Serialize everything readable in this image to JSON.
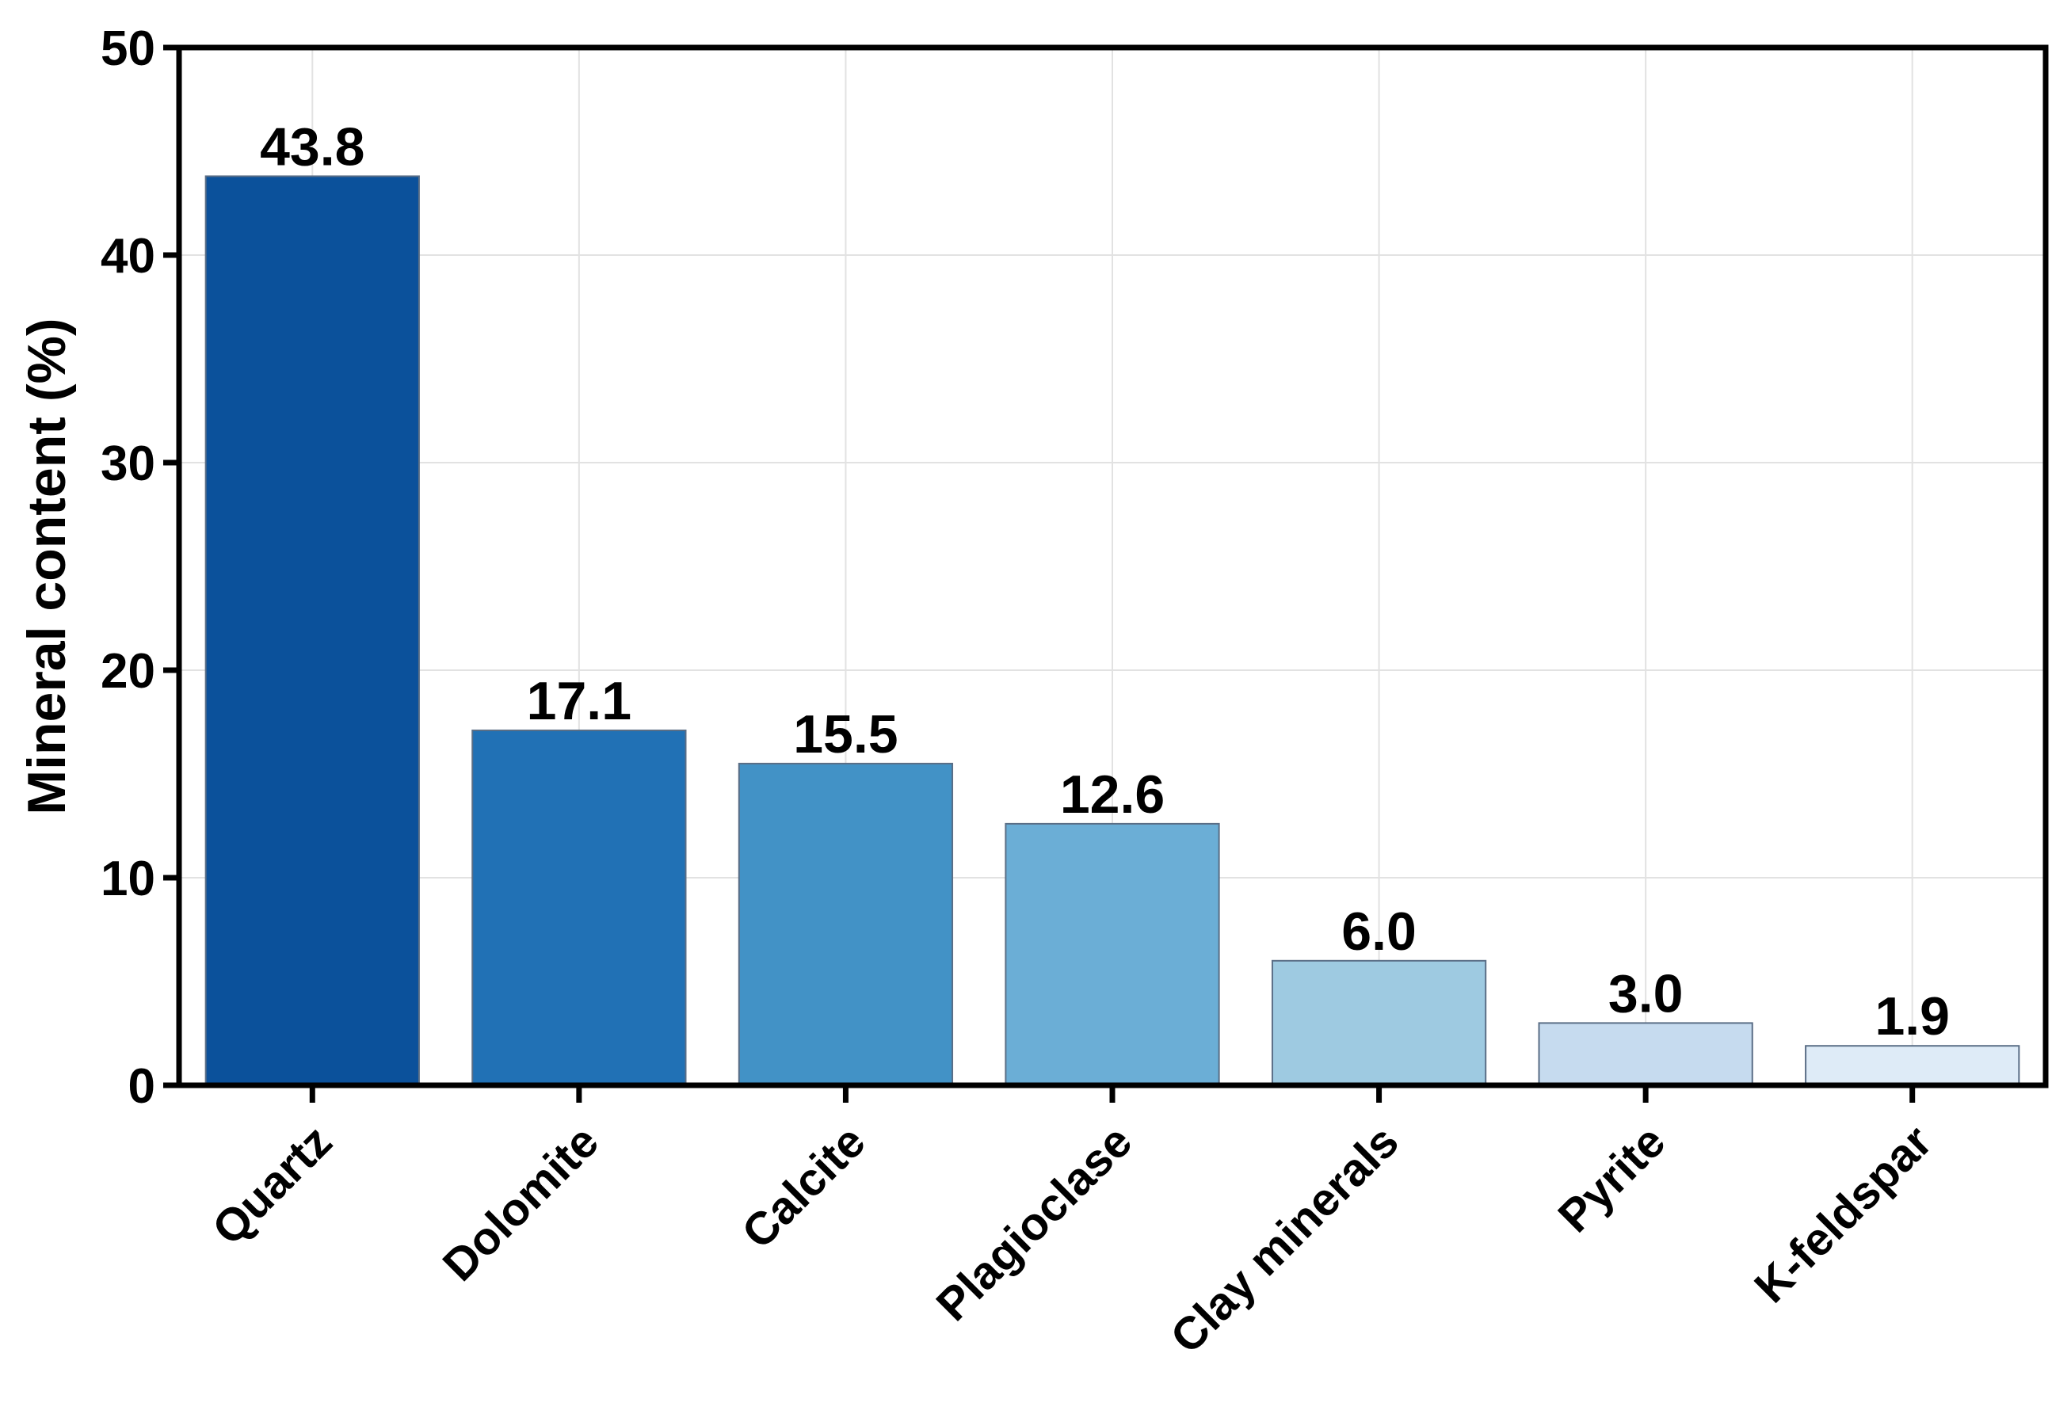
{
  "chart_data": {
    "type": "bar",
    "title": "",
    "xlabel": "",
    "ylabel": "Mineral content (%)",
    "ylim": [
      0,
      50
    ],
    "yticks": [
      0,
      10,
      20,
      30,
      40,
      50
    ],
    "grid": true,
    "categories": [
      "Quartz",
      "Dolomite",
      "Calcite",
      "Plagioclase",
      "Clay minerals",
      "Pyrite",
      "K-feldspar"
    ],
    "values": [
      43.8,
      17.1,
      15.5,
      12.6,
      6.0,
      3.0,
      1.9
    ],
    "value_labels": [
      "43.8",
      "17.1",
      "15.5",
      "12.6",
      "6.0",
      "3.0",
      "1.9"
    ],
    "colors": [
      "#0b519b",
      "#2171b5",
      "#4292c6",
      "#6baed6",
      "#9ecae1",
      "#c6dbef",
      "#deebf7"
    ],
    "x_tick_label_rotation_deg": -45
  }
}
